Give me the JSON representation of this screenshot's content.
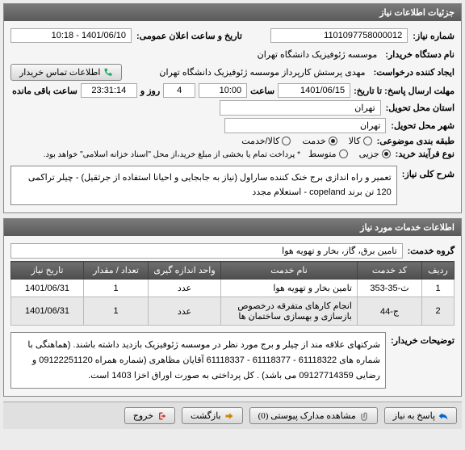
{
  "panels": {
    "info_title": "جزئیات اطلاعات نیاز",
    "services_title": "اطلاعات خدمات مورد نیاز"
  },
  "fields": {
    "need_number_label": "شماره نیاز:",
    "need_number": "1101097758000012",
    "announce_label": "تاریخ و ساعت اعلان عمومی:",
    "announce_value": "1401/06/10 - 10:18",
    "buyer_label": "نام دستگاه خریدار:",
    "buyer_value": "موسسه ژئوفیزیک دانشگاه تهران",
    "creator_label": "ایجاد کننده درخواست:",
    "creator_value": "مهدی پرستش کارپرداز موسسه ژئوفیزیک دانشگاه تهران",
    "contact_btn": "اطلاعات تماس خریدار",
    "deadline_label": "مهلت ارسال پاسخ: تا تاریخ:",
    "deadline_date": "1401/06/15",
    "deadline_time_label": "ساعت",
    "deadline_time": "10:00",
    "days": "4",
    "days_label": "روز و",
    "countdown": "23:31:14",
    "remaining": "ساعت باقی مانده",
    "province_label": "استان محل تحویل:",
    "province": "تهران",
    "city_label": "شهر محل تحویل:",
    "city": "تهران",
    "class_label": "طبقه بندی موضوعی:",
    "class_opts": {
      "kala": "کالا",
      "khadamat": "خدمت",
      "both": "کالا/خدمت"
    },
    "process_label": "نوع فرآیند خرید:",
    "process_opts": {
      "jozi": "جزیی",
      "motevaset": "متوسط"
    },
    "process_note": "* پرداخت تمام یا بخشی از مبلغ خرید،از محل \"اسناد خزانه اسلامی\" خواهد بود.",
    "desc_label": "شرح کلی نیاز:",
    "desc_text": "تعمیر و راه اندازی برج خنک کننده ساراول (نیاز به جابجایی  و احیانا استفاده از جرثقیل) - چیلر تراکمی 120 تن برند copeland - استعلام مجدد",
    "group_label": "گروه خدمت:",
    "group_value": "تامین برق، گاز، بخار و تهویه هوا",
    "buyer_notes_label": "توضیحات خریدار:",
    "buyer_notes": "شرکتهای علاقه مند از چیلر و برج مورد نظر در موسسه ژئوفیزیک بازدید داشته باشند. (هماهنگی با شماره های 61118322 - 61118377 - 61118337 آقایان مظاهری (شماره همراه 09122251120 و رضایی 09127714359 می باشد) . کل پرداختی به صورت اوراق اخزا 1403 است."
  },
  "table": {
    "headers": {
      "row": "ردیف",
      "code": "کد خدمت",
      "name": "نام خدمت",
      "unit": "واحد اندازه گیری",
      "qty": "تعداد / مقدار",
      "date": "تاریخ نیاز"
    },
    "rows": [
      {
        "n": "1",
        "code": "ث-35-353",
        "name": "تامین بخار و تهویه هوا",
        "unit": "عدد",
        "qty": "1",
        "date": "1401/06/31"
      },
      {
        "n": "2",
        "code": "ج-44",
        "name": "انجام کارهای متفرقه درخصوص بازسازی و بهسازی ساختمان ها",
        "unit": "عدد",
        "qty": "1",
        "date": "1401/06/31"
      }
    ]
  },
  "footer": {
    "respond": "پاسخ به نیاز",
    "attachments": "مشاهده مدارک پیوستی (0)",
    "back": "بازگشت",
    "exit": "خروج"
  }
}
